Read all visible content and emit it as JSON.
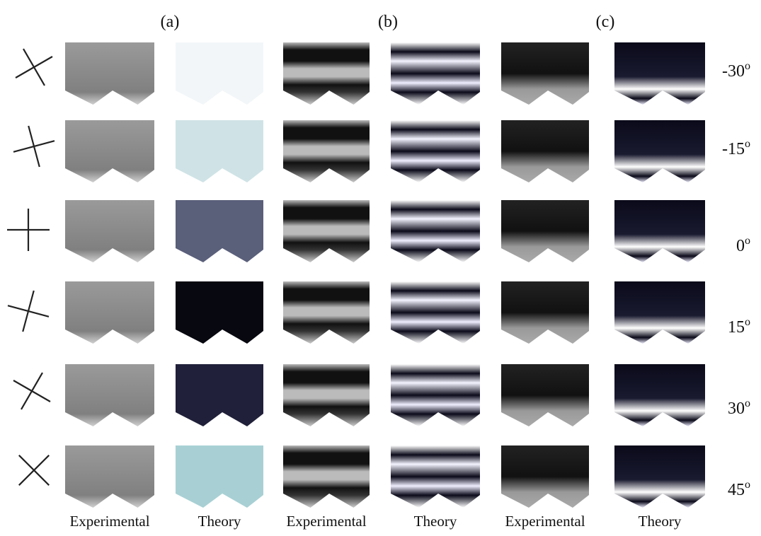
{
  "panel_labels": [
    "(a)",
    "(b)",
    "(c)"
  ],
  "column_labels": [
    "Experimental",
    "Theory",
    "Experimental",
    "Theory",
    "Experimental",
    "Theory"
  ],
  "angle_labels": [
    {
      "text": "-30",
      "sup": "o"
    },
    {
      "text": "-15",
      "sup": "o"
    },
    {
      "text": "0",
      "sup": "o"
    },
    {
      "text": "15",
      "sup": "o"
    },
    {
      "text": "30",
      "sup": "o"
    },
    {
      "text": "45",
      "sup": "o"
    }
  ]
}
